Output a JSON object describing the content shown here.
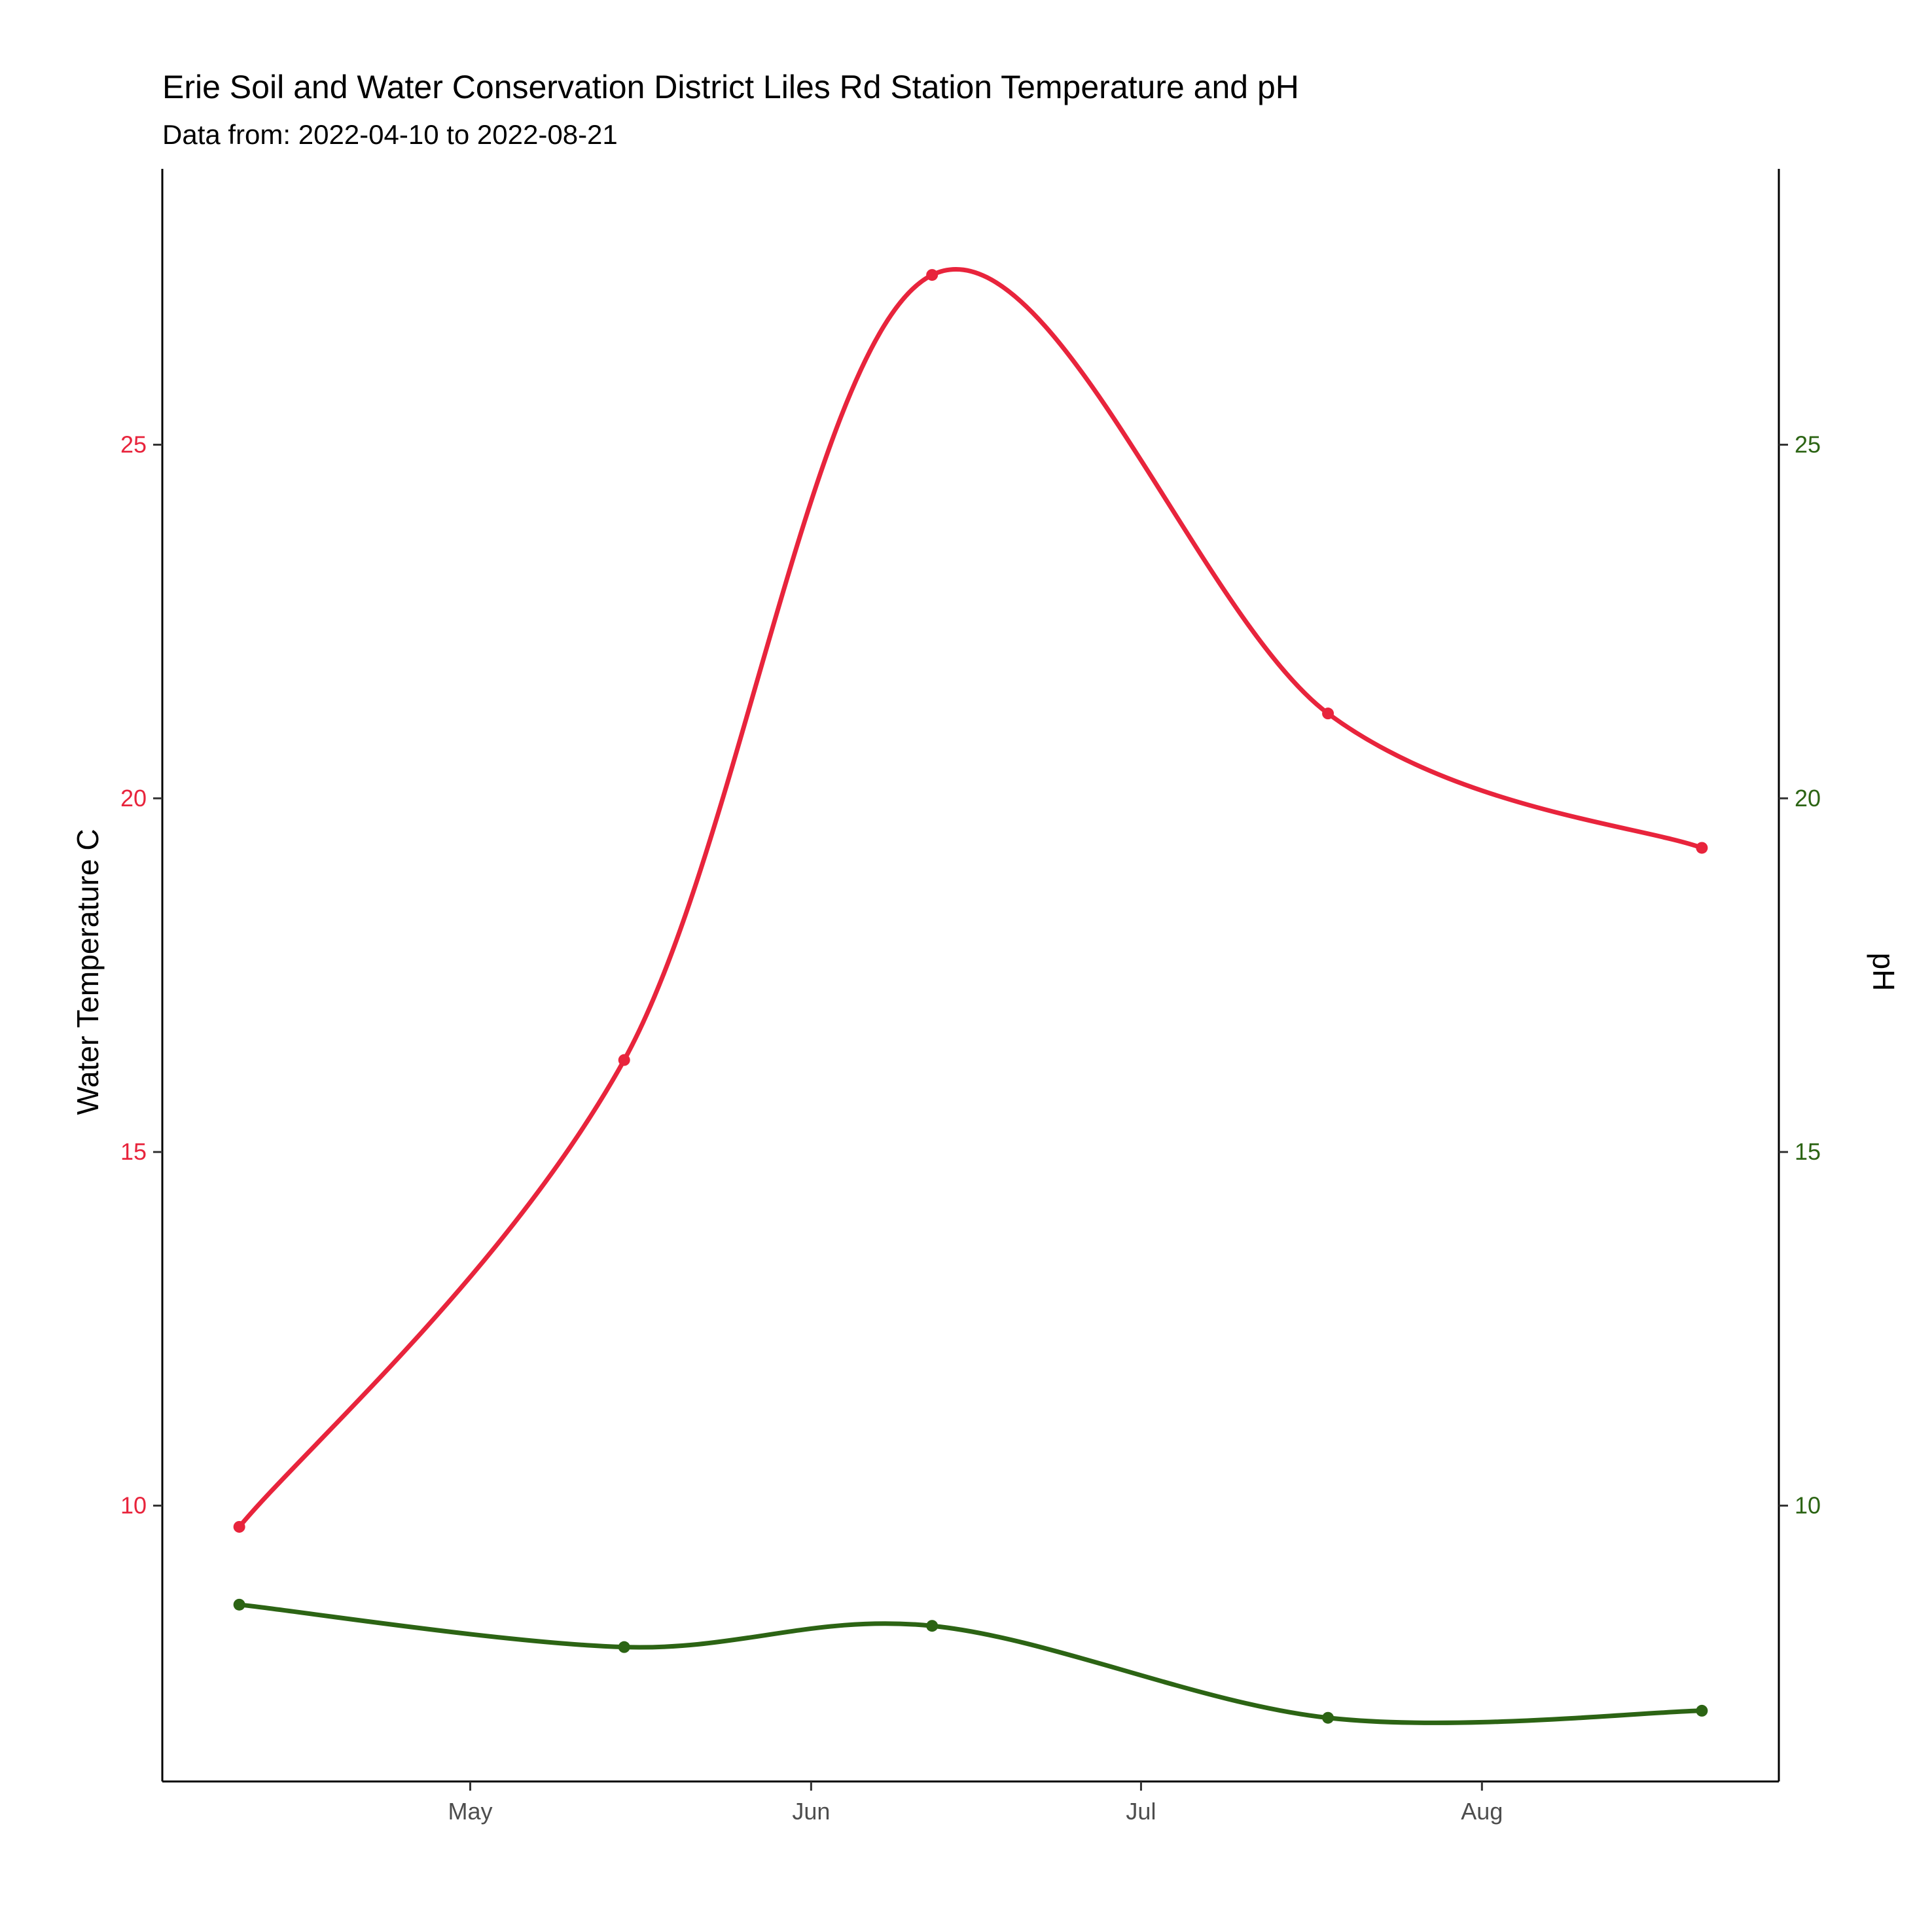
{
  "chart_data": {
    "type": "line",
    "title": "Erie Soil and Water Conservation District Liles Rd Station Temperature and pH",
    "subtitle": "Data from: 2022-04-10 to 2022-08-21",
    "ylabel": "Water Temperature C",
    "y2label": "pH",
    "x_tick_labels": [
      "May",
      "Jun",
      "Jul",
      "Aug"
    ],
    "x_tick_dates": [
      "2022-05-01",
      "2022-06-01",
      "2022-07-01",
      "2022-08-01"
    ],
    "xlim": [
      "2022-04-03",
      "2022-08-28"
    ],
    "ylim": [
      6.1,
      28.9
    ],
    "y_ticks": [
      10,
      15,
      20,
      25
    ],
    "y2lim": [
      6.1,
      28.9
    ],
    "y2_ticks": [
      10,
      15,
      20,
      25
    ],
    "grid": false,
    "legend": "none",
    "series": [
      {
        "axis": "left",
        "color": "#e8243c",
        "points": [
          {
            "x": "2022-04-10",
            "y": 9.7
          },
          {
            "x": "2022-05-15",
            "y": 16.3
          },
          {
            "x": "2022-06-12",
            "y": 27.4
          },
          {
            "x": "2022-07-18",
            "y": 21.2
          },
          {
            "x": "2022-08-21",
            "y": 19.3
          }
        ]
      },
      {
        "axis": "right",
        "color": "#2c6414",
        "points": [
          {
            "x": "2022-04-10",
            "y": 8.6
          },
          {
            "x": "2022-05-15",
            "y": 8.0
          },
          {
            "x": "2022-06-12",
            "y": 8.3
          },
          {
            "x": "2022-07-18",
            "y": 7.0
          },
          {
            "x": "2022-08-21",
            "y": 7.1
          }
        ]
      }
    ]
  }
}
